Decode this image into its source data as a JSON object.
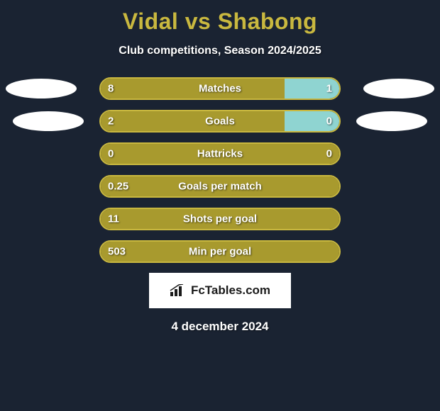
{
  "title": "Vidal vs Shabong",
  "subtitle": "Club competitions, Season 2024/2025",
  "colors": {
    "background": "#1a2332",
    "title": "#c9b83f",
    "bar_border": "#c9b83f",
    "bar_left": "#a89a2e",
    "bar_right": "#8fd4d1",
    "text": "#ffffff",
    "ellipse": "#ffffff"
  },
  "stats": [
    {
      "label": "Matches",
      "left_val": "8",
      "right_val": "1",
      "left_pct": 77,
      "show_ellipses": true
    },
    {
      "label": "Goals",
      "left_val": "2",
      "right_val": "0",
      "left_pct": 77,
      "show_ellipses": true
    },
    {
      "label": "Hattricks",
      "left_val": "0",
      "right_val": "0",
      "left_pct": 100,
      "show_ellipses": false
    },
    {
      "label": "Goals per match",
      "left_val": "0.25",
      "right_val": "",
      "left_pct": 100,
      "show_ellipses": false
    },
    {
      "label": "Shots per goal",
      "left_val": "11",
      "right_val": "",
      "left_pct": 100,
      "show_ellipses": false
    },
    {
      "label": "Min per goal",
      "left_val": "503",
      "right_val": "",
      "left_pct": 100,
      "show_ellipses": false
    }
  ],
  "logo": {
    "text": "FcTables.com"
  },
  "date": "4 december 2024"
}
